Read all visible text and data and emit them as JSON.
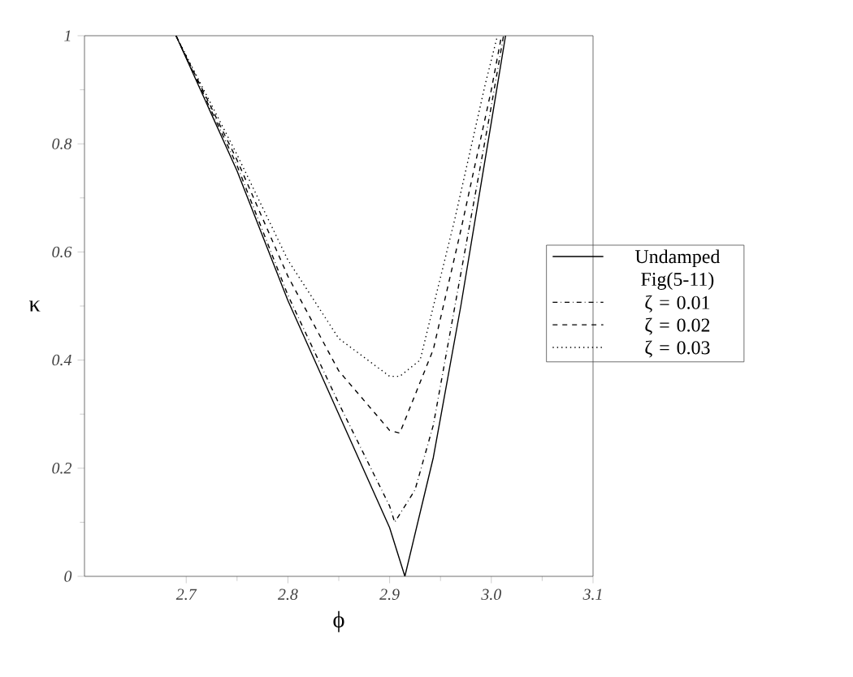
{
  "chart_data": {
    "type": "line",
    "xlabel": "ϕ",
    "ylabel": "κ",
    "xlim": [
      2.6,
      3.1
    ],
    "ylim": [
      0,
      1
    ],
    "xticks": [
      2.7,
      2.8,
      2.9,
      {
        "value": 3.0,
        "label": "3.0"
      },
      3.1
    ],
    "yticks": [
      0,
      0.2,
      0.4,
      0.6,
      0.8,
      1
    ],
    "grid": false,
    "legend": "right",
    "marker": "none",
    "series": [
      {
        "name": "Undamped Fig(5-11)",
        "color": "#000000",
        "line_style": "solid",
        "x": [
          2.69,
          2.75,
          2.8,
          2.85,
          2.9,
          2.915,
          2.943,
          2.97,
          3.0,
          3.014
        ],
        "values": [
          1,
          0.75,
          0.51,
          0.3,
          0.09,
          0,
          0.22,
          0.5,
          0.84,
          1
        ]
      },
      {
        "name": "ζ = 0.01",
        "color": "#000000",
        "line_style": "dashdot",
        "x": [
          2.69,
          2.75,
          2.8,
          2.85,
          2.9,
          2.905,
          2.925,
          2.943,
          2.97,
          3.0,
          3.012
        ],
        "values": [
          1,
          0.76,
          0.52,
          0.32,
          0.13,
          0.1,
          0.16,
          0.28,
          0.56,
          0.87,
          1
        ]
      },
      {
        "name": "ζ = 0.02",
        "color": "#000000",
        "line_style": "dashed",
        "x": [
          2.69,
          2.75,
          2.8,
          2.85,
          2.9,
          2.91,
          2.943,
          2.97,
          3.0,
          3.01
        ],
        "values": [
          1,
          0.77,
          0.555,
          0.38,
          0.27,
          0.265,
          0.42,
          0.64,
          0.9,
          1
        ]
      },
      {
        "name": "ζ = 0.03",
        "color": "#000000",
        "line_style": "dotted",
        "x": [
          2.69,
          2.75,
          2.8,
          2.85,
          2.9,
          2.91,
          2.93,
          2.964,
          2.994,
          3.006
        ],
        "values": [
          1,
          0.78,
          0.585,
          0.44,
          0.37,
          0.37,
          0.4,
          0.66,
          0.91,
          1
        ]
      }
    ]
  }
}
